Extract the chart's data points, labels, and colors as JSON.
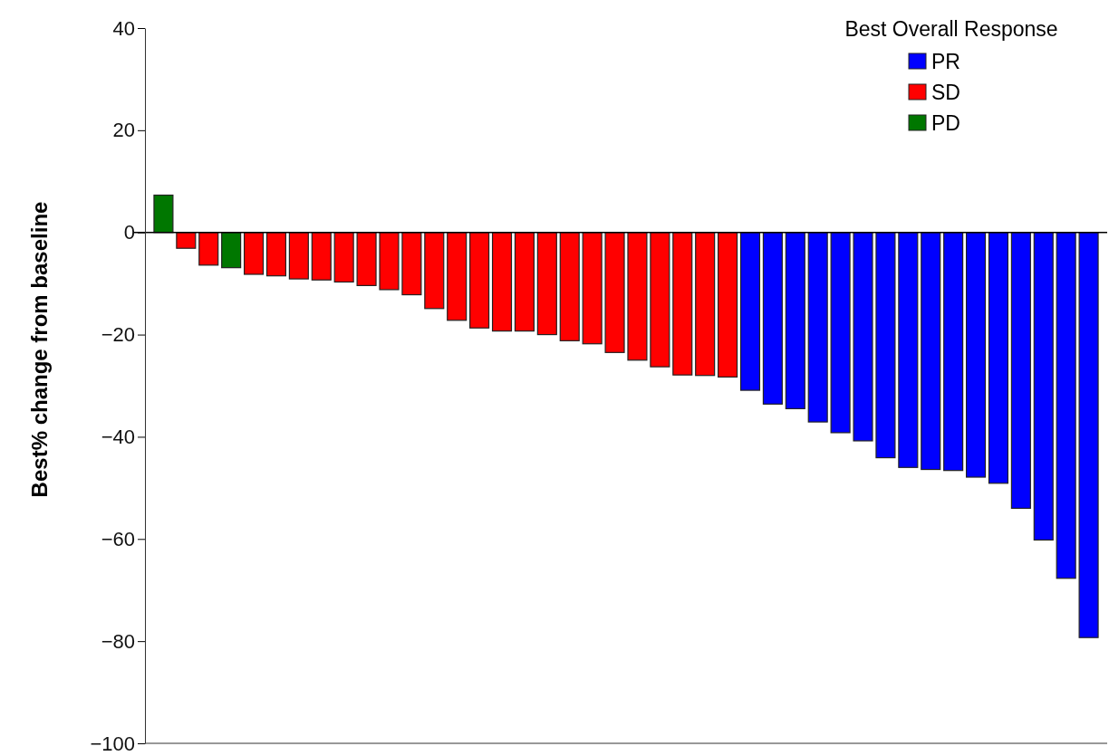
{
  "chart_data": {
    "type": "bar",
    "ylabel": "Best% change from baseline",
    "legend_title": "Best Overall Response",
    "legend": "top right",
    "tick_labels": "y",
    "categories": [
      null,
      null,
      null,
      null,
      null,
      null,
      null,
      null,
      null,
      null,
      null,
      null,
      null,
      null,
      null,
      null,
      null,
      null,
      null,
      null,
      null,
      null,
      null,
      null,
      null,
      null,
      null,
      null,
      null,
      null,
      null,
      null,
      null,
      null,
      null,
      null,
      null,
      null,
      null,
      null,
      null,
      null
    ],
    "series": [
      {
        "name": "PR",
        "color": "#0000ff",
        "values": [
          null,
          null,
          null,
          null,
          null,
          null,
          null,
          null,
          null,
          null,
          null,
          null,
          null,
          null,
          null,
          null,
          null,
          null,
          null,
          null,
          null,
          null,
          null,
          null,
          null,
          null,
          -30.9,
          -33.6,
          -34.5,
          -37.1,
          -39.2,
          -40.8,
          -44.1,
          -46.0,
          -46.4,
          -46.6,
          -47.9,
          -49.1,
          -54.0,
          -60.2,
          -67.7,
          -79.3
        ]
      },
      {
        "name": "SD",
        "color": "#ff0000",
        "values": [
          null,
          -3.1,
          -6.4,
          null,
          -8.2,
          -8.5,
          -9.1,
          -9.3,
          -9.7,
          -10.4,
          -11.2,
          -12.2,
          -14.9,
          -17.2,
          -18.7,
          -19.3,
          -19.3,
          -20.0,
          -21.2,
          -21.8,
          -23.5,
          -25.0,
          -26.3,
          -27.9,
          -28.0,
          -28.3,
          null,
          null,
          null,
          null,
          null,
          null,
          null,
          null,
          null,
          null,
          null,
          null,
          null,
          null,
          null,
          null
        ]
      },
      {
        "name": "PD",
        "color": "#007700",
        "values": [
          7.3,
          null,
          null,
          -6.9,
          null,
          null,
          null,
          null,
          null,
          null,
          null,
          null,
          null,
          null,
          null,
          null,
          null,
          null,
          null,
          null,
          null,
          null,
          null,
          null,
          null,
          null,
          null,
          null,
          null,
          null,
          null,
          null,
          null,
          null,
          null,
          null,
          null,
          null,
          null,
          null,
          null,
          null
        ]
      }
    ],
    "ylim": [
      -100,
      40
    ],
    "yticks": [
      {
        "value": -100,
        "label": "−100"
      },
      {
        "value": -80,
        "label": "−80"
      },
      {
        "value": -60,
        "label": "−60"
      },
      {
        "value": -40,
        "label": "−40"
      },
      {
        "value": -20,
        "label": "−20"
      },
      0,
      20,
      40
    ],
    "ref_lines": [
      {
        "axis": "y",
        "value": 0,
        "color": "#000000"
      }
    ]
  }
}
